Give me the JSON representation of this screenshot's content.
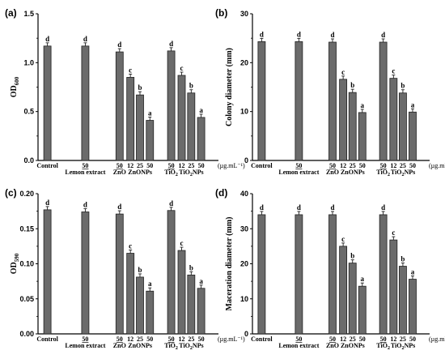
{
  "concentration_unit": "(µg.mL⁻¹)",
  "chart_data": [
    {
      "panel": "(a)",
      "type": "bar",
      "ylabel": "OD600",
      "ylabel_main": "OD",
      "ylabel_sub": "600",
      "ylim": [
        0,
        1.5
      ],
      "yticks": [
        "0.0",
        "0.5",
        "1.0",
        "1.5"
      ],
      "groups": [
        {
          "label": "Control",
          "doses": [
            ""
          ],
          "values": [
            1.17
          ],
          "sig": [
            "d"
          ]
        },
        {
          "label": "Lemon extract",
          "doses": [
            "50"
          ],
          "values": [
            1.17
          ],
          "sig": [
            "d"
          ]
        },
        {
          "label": "ZnO",
          "doses": [
            "50"
          ],
          "values": [
            1.11
          ],
          "sig": [
            "d"
          ]
        },
        {
          "label": "ZnONPs",
          "doses": [
            "12",
            "25",
            "50"
          ],
          "values": [
            0.85,
            0.67,
            0.41
          ],
          "sig": [
            "c",
            "b",
            "a"
          ]
        },
        {
          "label": "TiO2",
          "doses": [
            "50"
          ],
          "values": [
            1.12
          ],
          "sig": [
            "d"
          ]
        },
        {
          "label": "TiO2NPs",
          "doses": [
            "12",
            "25",
            "50"
          ],
          "values": [
            0.87,
            0.69,
            0.44
          ],
          "sig": [
            "c",
            "b",
            "a"
          ]
        }
      ]
    },
    {
      "panel": "(b)",
      "type": "bar",
      "ylabel": "Colony diameter (mm)",
      "ylim": [
        0,
        30
      ],
      "yticks": [
        "0",
        "10",
        "20",
        "30"
      ],
      "groups": [
        {
          "label": "Control",
          "doses": [
            ""
          ],
          "values": [
            24.3
          ],
          "sig": [
            "d"
          ]
        },
        {
          "label": "Lemon extract",
          "doses": [
            "50"
          ],
          "values": [
            24.3
          ],
          "sig": [
            "d"
          ]
        },
        {
          "label": "ZnO",
          "doses": [
            "50"
          ],
          "values": [
            24.2
          ],
          "sig": [
            "d"
          ]
        },
        {
          "label": "ZnONPs",
          "doses": [
            "12",
            "25",
            "50"
          ],
          "values": [
            16.6,
            13.9,
            9.8
          ],
          "sig": [
            "c",
            "b",
            "a"
          ]
        },
        {
          "label": "TiO2",
          "doses": [
            "50"
          ],
          "values": [
            24.2
          ],
          "sig": [
            "d"
          ]
        },
        {
          "label": "TiO2NPs",
          "doses": [
            "12",
            "25",
            "50"
          ],
          "values": [
            16.8,
            13.8,
            9.9
          ],
          "sig": [
            "c",
            "b",
            "a"
          ]
        }
      ]
    },
    {
      "panel": "(c)",
      "type": "bar",
      "ylabel": "OD590",
      "ylabel_main": "OD",
      "ylabel_sub": "590",
      "ylim": [
        0,
        0.2
      ],
      "yticks": [
        "0.00",
        "0.05",
        "0.10",
        "0.15",
        "0.20"
      ],
      "groups": [
        {
          "label": "Control",
          "doses": [
            ""
          ],
          "values": [
            0.177
          ],
          "sig": [
            "d"
          ]
        },
        {
          "label": "Lemon extract",
          "doses": [
            "50"
          ],
          "values": [
            0.174
          ],
          "sig": [
            "d"
          ]
        },
        {
          "label": "ZnO",
          "doses": [
            "50"
          ],
          "values": [
            0.171
          ],
          "sig": [
            "d"
          ]
        },
        {
          "label": "ZnONPs",
          "doses": [
            "12",
            "25",
            "50"
          ],
          "values": [
            0.115,
            0.081,
            0.061
          ],
          "sig": [
            "c",
            "b",
            "a"
          ]
        },
        {
          "label": "TiO2",
          "doses": [
            "50"
          ],
          "values": [
            0.176
          ],
          "sig": [
            "d"
          ]
        },
        {
          "label": "TiO2NPs",
          "doses": [
            "12",
            "25",
            "50"
          ],
          "values": [
            0.119,
            0.084,
            0.065
          ],
          "sig": [
            "c",
            "b",
            "a"
          ]
        }
      ]
    },
    {
      "panel": "(d)",
      "type": "bar",
      "ylabel": "Maceration diameter (mm)",
      "ylim": [
        0,
        40
      ],
      "yticks": [
        "0",
        "10",
        "20",
        "30",
        "40"
      ],
      "groups": [
        {
          "label": "Control",
          "doses": [
            ""
          ],
          "values": [
            34.0
          ],
          "sig": [
            "d"
          ]
        },
        {
          "label": "Lemon extract",
          "doses": [
            "50"
          ],
          "values": [
            34.0
          ],
          "sig": [
            "d"
          ]
        },
        {
          "label": "ZnO",
          "doses": [
            "50"
          ],
          "values": [
            34.0
          ],
          "sig": [
            "d"
          ]
        },
        {
          "label": "ZnONPs",
          "doses": [
            "12",
            "25",
            "50"
          ],
          "values": [
            25.0,
            20.2,
            13.6
          ],
          "sig": [
            "c",
            "b",
            "a"
          ]
        },
        {
          "label": "TiO2",
          "doses": [
            "50"
          ],
          "values": [
            34.0
          ],
          "sig": [
            "d"
          ]
        },
        {
          "label": "TiO2NPs",
          "doses": [
            "12",
            "25",
            "50"
          ],
          "values": [
            26.8,
            19.3,
            15.6
          ],
          "sig": [
            "c",
            "b",
            "a"
          ]
        }
      ]
    }
  ],
  "colors": {
    "bar_fill": "#6b6b6b",
    "bar_stroke": "#202020",
    "axis": "#000000"
  }
}
